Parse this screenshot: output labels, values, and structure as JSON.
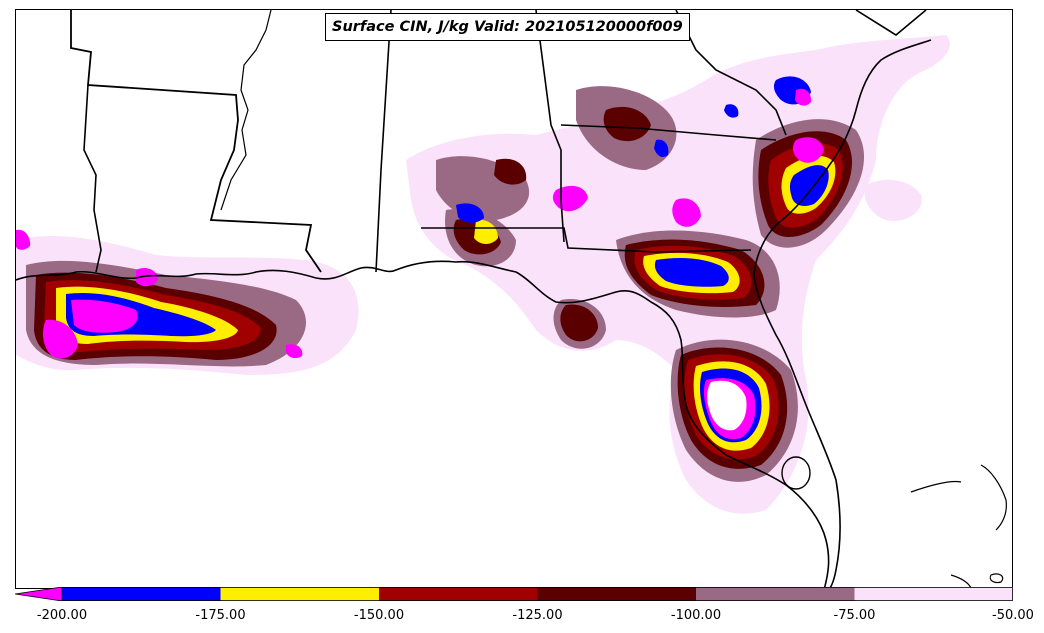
{
  "title": "Surface CIN, J/kg Valid: 202105120000f009",
  "colorbar": {
    "extend": "min",
    "tick_labels": [
      "-200.00",
      "-175.00",
      "-150.00",
      "-125.00",
      "-100.00",
      "-75.00",
      "-50.00"
    ],
    "bins": [
      {
        "range": [
          -225,
          -200
        ],
        "color": "#ff00ff"
      },
      {
        "range": [
          -200,
          -175
        ],
        "color": "#0000ff"
      },
      {
        "range": [
          -175,
          -150
        ],
        "color": "#ffee00"
      },
      {
        "range": [
          -150,
          -125
        ],
        "color": "#a00000"
      },
      {
        "range": [
          -125,
          -100
        ],
        "color": "#5a0000"
      },
      {
        "range": [
          -100,
          -75
        ],
        "color": "#9a6a85"
      },
      {
        "range": [
          -75,
          -50
        ],
        "color": "#fbe2fb"
      }
    ]
  },
  "map": {
    "region": "US Gulf Coast and Florida",
    "background": "#ffffff",
    "boundary_color": "#000000"
  }
}
